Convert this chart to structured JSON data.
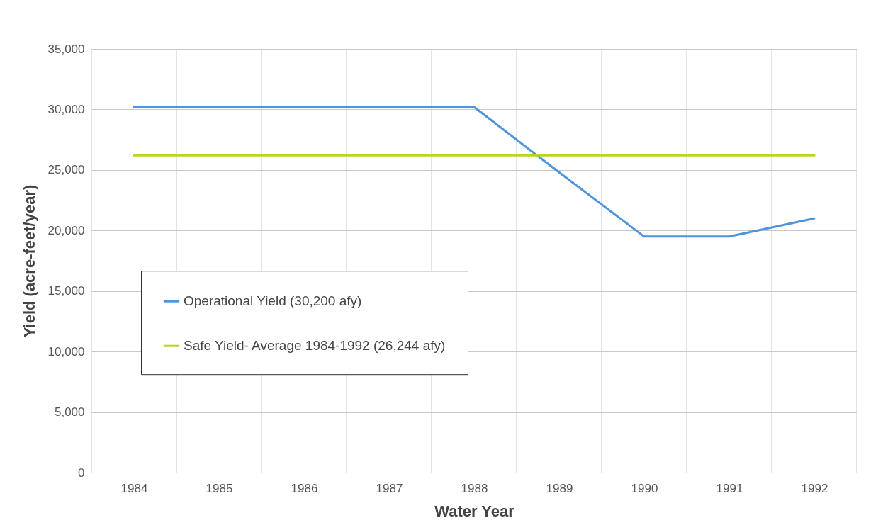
{
  "chart_data": {
    "type": "line",
    "xlabel": "Water Year",
    "ylabel": "Yield (acre-feet/year)",
    "categories": [
      "1984",
      "1985",
      "1986",
      "1987",
      "1988",
      "1989",
      "1990",
      "1991",
      "1992"
    ],
    "series": [
      {
        "name": "Operational Yield (30,200 afy)",
        "color": "#4f94d8",
        "values": [
          30200,
          30200,
          30200,
          30200,
          30200,
          24800,
          19500,
          19500,
          21000
        ]
      },
      {
        "name": "Safe Yield- Average 1984-1992 (26,244 afy)",
        "color": "#bcd41e",
        "values": [
          26200,
          26200,
          26200,
          26200,
          26200,
          26200,
          26200,
          26200,
          26200
        ]
      }
    ],
    "ylim": [
      0,
      35000
    ],
    "yticks": [
      0,
      {
        "value": 5000,
        "label": "5,000"
      },
      {
        "value": 10000,
        "label": "10,000"
      },
      {
        "value": 15000,
        "label": "15,000"
      },
      {
        "value": 20000,
        "label": "20,000"
      },
      {
        "value": 25000,
        "label": "25,000"
      },
      {
        "value": 30000,
        "label": "30,000"
      },
      {
        "value": 35000,
        "label": "35,000"
      }
    ],
    "grid": true,
    "legend": "bottom",
    "marker": "none",
    "line_style": "solid"
  }
}
